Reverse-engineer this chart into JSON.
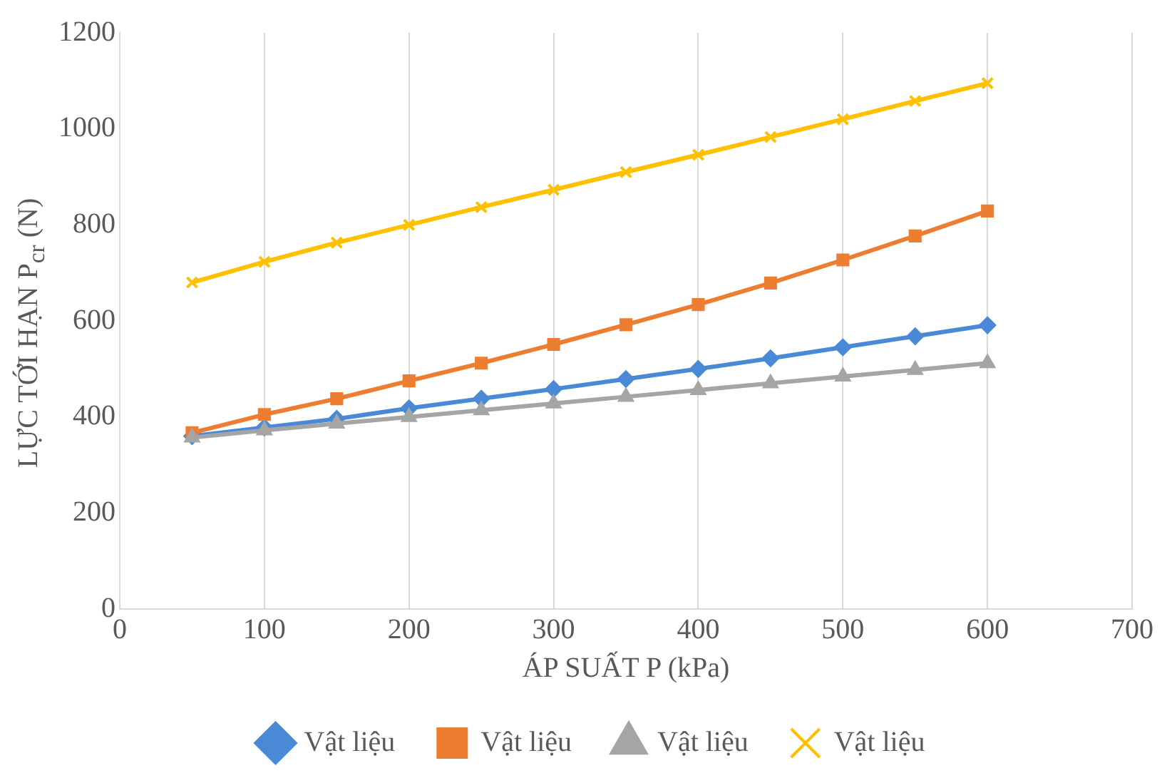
{
  "chart_data": {
    "type": "line",
    "xlabel": "ÁP SUẤT P (kPa)",
    "ylabel": "LỰC TỚI HẠN P$_{cr}$ (N)",
    "x": [
      50,
      100,
      150,
      200,
      250,
      300,
      350,
      400,
      450,
      500,
      550,
      600
    ],
    "series": [
      {
        "name": "Vật liệu",
        "color": "#4a89d6",
        "marker": "diamond",
        "values": [
          360,
          378,
          396,
          418,
          438,
          458,
          479,
          500,
          522,
          545,
          568,
          591
        ]
      },
      {
        "name": "Vật liệu",
        "color": "#ed7d31",
        "marker": "square",
        "values": [
          367,
          405,
          438,
          475,
          512,
          551,
          592,
          634,
          679,
          727,
          777,
          829
        ]
      },
      {
        "name": "Vật liệu",
        "color": "#a5a5a5",
        "marker": "triangle",
        "values": [
          357,
          372,
          386,
          400,
          414,
          428,
          442,
          456,
          470,
          484,
          498,
          512
        ]
      },
      {
        "name": "Vật liệu",
        "color": "#ffc000",
        "marker": "cross",
        "values": [
          680,
          723,
          763,
          800,
          837,
          873,
          910,
          946,
          983,
          1020,
          1058,
          1095
        ]
      }
    ],
    "xlim": [
      0,
      700
    ],
    "xticks": [
      0,
      100,
      200,
      300,
      400,
      500,
      600,
      700
    ],
    "ylim": [
      0,
      1200
    ],
    "yticks": [
      0,
      200,
      400,
      600,
      800,
      1000,
      1200
    ],
    "grid": "x",
    "legend": "bottom"
  }
}
